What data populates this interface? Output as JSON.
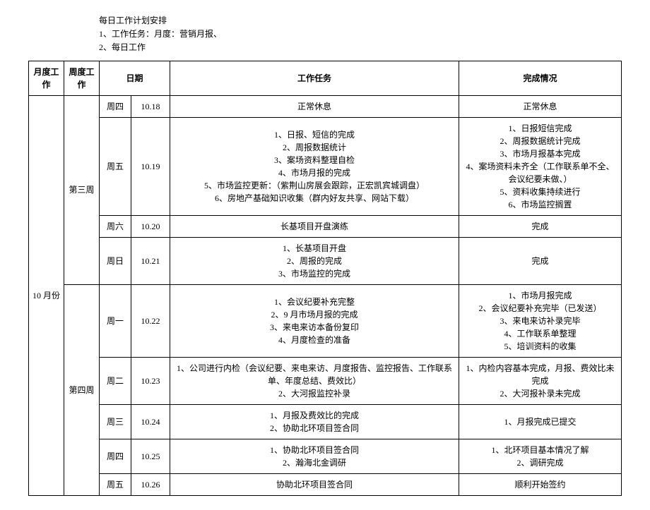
{
  "header": {
    "line1": "每日工作计划安排",
    "line2": "1、工作任务：月度：营销月报、",
    "line3": "2、每日工作"
  },
  "columns": {
    "month": "月度工作",
    "week": "周度工作",
    "day": "日期",
    "date": "",
    "task": "工作任务",
    "done": "完成情况"
  },
  "month_label": "10 月份",
  "week3_label": "第三周",
  "week4_label": "第四周",
  "rows": [
    {
      "day": "周四",
      "date": "10.18",
      "task": "正常休息",
      "done": "正常休息"
    },
    {
      "day": "周五",
      "date": "10.19",
      "task": "1、日报、短信的完成\n2、周报数据统计\n3、案场资料整理自检\n4、市场月报的完成\n5、市场监控更新：（紫荆山房展会跟踪，正宏凯宾城调盘）\n6、房地产基础知识收集（群内好友共享、网站下载）",
      "done": "1、日报短信完成\n2、周报数据统计完成\n3、市场月报基本完成\n4、案场资料未齐全（工作联系单不全、会议纪要未做、）\n5、资料收集持续进行\n6、市场监控搁置"
    },
    {
      "day": "周六",
      "date": "10.20",
      "task": "长基项目开盘演练",
      "done": "完成"
    },
    {
      "day": "周日",
      "date": "10.21",
      "task": "1、长基项目开盘\n2、周报的完成\n3、市场监控的完成",
      "done": "完成"
    },
    {
      "day": "周一",
      "date": "10.22",
      "task": "1、会议纪要补充完整\n2、9 月市场月报的完成\n3、来电来访本备份复印\n4、月度检查的准备",
      "done": "1、市场月报完成\n2、会议纪要补充完毕（已发送）\n3、来电来访补录完毕\n4、工作联系单整理\n5、培训资料的收集"
    },
    {
      "day": "周二",
      "date": "10.23",
      "task": "1、公司进行内检（会议纪要、来电来访、月度报告、监控报告、工作联系单、年度总结、费效比）\n2、大河报监控补录",
      "done": "1、内检内容基本完成，月报、费效比未完成\n2、大河报补录未完成"
    },
    {
      "day": "周三",
      "date": "10.24",
      "task": "1、月报及费效比的完成\n2、协助北环项目签合同",
      "done": "1、月报完成已提交"
    },
    {
      "day": "周四",
      "date": "10.25",
      "task": "1、协助北环项目签合同\n2、瀚海北金调研",
      "done": "1、北环项目基本情况了解\n2、调研完成"
    },
    {
      "day": "周五",
      "date": "10.26",
      "task": "协助北环项目签合同",
      "done": "顺利开始签约"
    }
  ]
}
